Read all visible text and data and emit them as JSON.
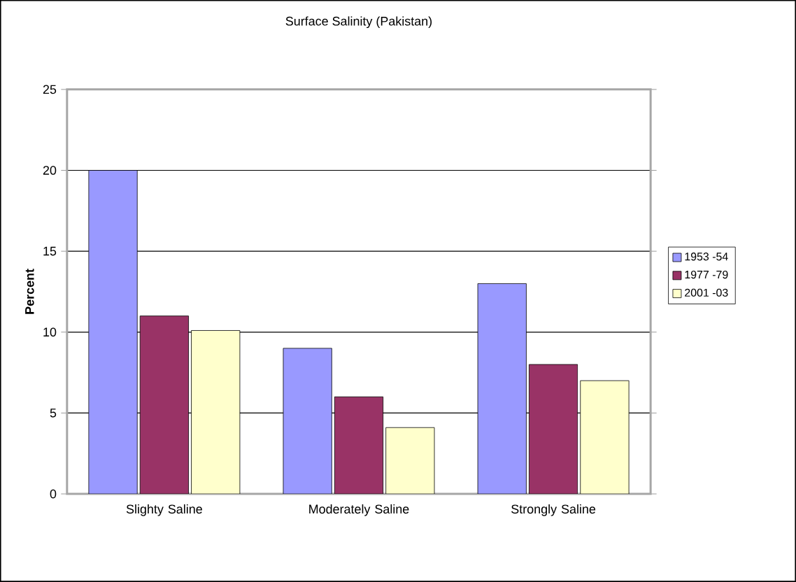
{
  "chart_data": {
    "type": "bar",
    "title": "Surface Salinity (Pakistan)",
    "ylabel": "Percent",
    "categories": [
      "Slighty Saline",
      "Moderately Saline",
      "Strongly Saline"
    ],
    "series": [
      {
        "name": "1953 -54",
        "color": "#9999ff",
        "values": [
          20,
          9,
          13
        ]
      },
      {
        "name": "1977 -79",
        "color": "#993366",
        "values": [
          11,
          6,
          8
        ]
      },
      {
        "name": "2001 -03",
        "color": "#ffffcc",
        "values": [
          10.1,
          4.1,
          7
        ]
      }
    ],
    "ylim": [
      0,
      25
    ],
    "yticks": [
      0,
      5,
      10,
      15,
      20,
      25
    ],
    "grid": "y",
    "legend": "right"
  }
}
